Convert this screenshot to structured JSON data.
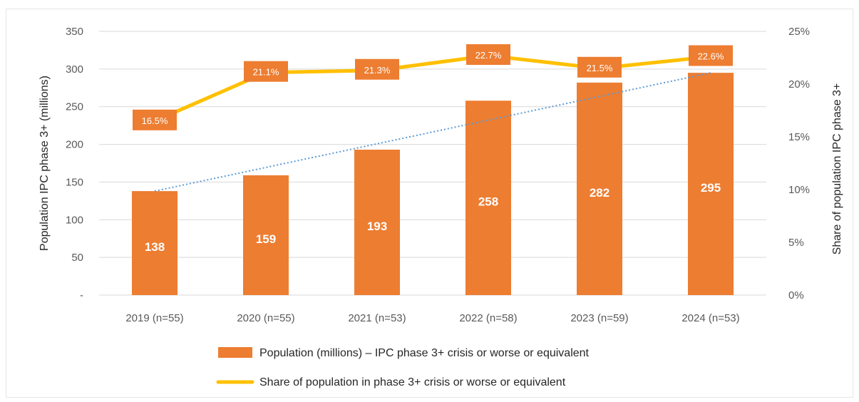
{
  "chart_data": {
    "type": "bar",
    "categories": [
      "2019 (n=55)",
      "2020 (n=55)",
      "2021 (n=53)",
      "2022 (n=58)",
      "2023 (n=59)",
      "2024 (n=53)"
    ],
    "series": [
      {
        "name": "Population (millions) – IPC phase 3+ crisis or worse or equivalent",
        "type": "bar",
        "axis": "left",
        "values": [
          138,
          159,
          193,
          258,
          282,
          295
        ],
        "labels": [
          "138",
          "159",
          "193",
          "258",
          "282",
          "295"
        ]
      },
      {
        "name": "Share of population in phase 3+ crisis or worse or equivalent",
        "type": "line",
        "axis": "right",
        "values": [
          16.5,
          21.1,
          21.3,
          22.7,
          21.5,
          22.6
        ],
        "labels": [
          "16.5%",
          "21.1%",
          "21.3%",
          "22.7%",
          "21.5%",
          "22.6%"
        ]
      }
    ],
    "trendline": {
      "of_series": "Population (millions) – IPC phase 3+ crisis or worse or equivalent",
      "style": "dotted",
      "start": 138,
      "end": 295
    },
    "ylabel": "Population IPC phase 3+ (millions)",
    "y2label": "Share of population IPC phase 3+",
    "ylim": [
      0,
      350
    ],
    "y2lim": [
      0,
      25
    ],
    "yticks": [
      0,
      50,
      100,
      150,
      200,
      250,
      300,
      350
    ],
    "ytick_labels": [
      "-",
      "50",
      "100",
      "150",
      "200",
      "250",
      "300",
      "350"
    ],
    "y2ticks": [
      0,
      5,
      10,
      15,
      20,
      25
    ],
    "y2tick_labels": [
      "0%",
      "5%",
      "10%",
      "15%",
      "20%",
      "25%"
    ],
    "grid": true,
    "legend": "bottom",
    "colors": {
      "bar": "#ed7d31",
      "line": "#ffc000",
      "trend": "#5b9bd5",
      "label_box": "#ed7d31",
      "grid": "#d9d9d9"
    }
  }
}
